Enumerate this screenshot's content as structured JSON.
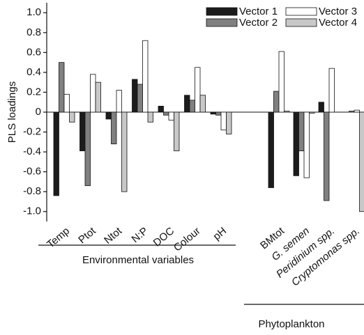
{
  "chart_data": {
    "type": "bar",
    "y_label": "PLS loadings",
    "categories": [
      "Temp",
      "Ptot",
      "Ntot",
      "N:P",
      "DOC",
      "Colour",
      "pH",
      "BMtot",
      "G. semen",
      "Peridinium spp.",
      "Cryptomonas spp."
    ],
    "series": [
      {
        "name": "Vector 1",
        "color": "#1c1c1c",
        "values": [
          -0.84,
          -0.39,
          -0.07,
          0.33,
          0.06,
          0.17,
          -0.02,
          -0.76,
          -0.64,
          0.1,
          0
        ]
      },
      {
        "name": "Vector 2",
        "color": "#808080",
        "values": [
          0.5,
          -0.74,
          -0.32,
          0.28,
          -0.03,
          0.12,
          -0.03,
          0.21,
          -0.39,
          -0.89,
          0.01
        ]
      },
      {
        "name": "Vector 3",
        "color": "#ffffff",
        "values": [
          0.18,
          0.38,
          0.22,
          0.72,
          -0.08,
          0.45,
          -0.18,
          0.61,
          -0.66,
          0.44,
          0.02
        ]
      },
      {
        "name": "Vector 4",
        "color": "#c8c8c8",
        "values": [
          -0.1,
          0.3,
          -0.8,
          -0.1,
          -0.39,
          0.17,
          -0.22,
          0.01,
          -0.01,
          0,
          -1.0
        ]
      }
    ],
    "ylim": [
      -1.1,
      1.1
    ],
    "yticks": [
      {
        "value": 1,
        "label": "1.0"
      },
      0.8,
      0.6,
      0.4,
      0.2,
      0,
      -0.2,
      -0.4,
      -0.6,
      -0.8,
      {
        "value": -1,
        "label": "-1.0"
      }
    ],
    "group_labels": [
      "Environmental variables",
      "Phytoplankton"
    ]
  }
}
